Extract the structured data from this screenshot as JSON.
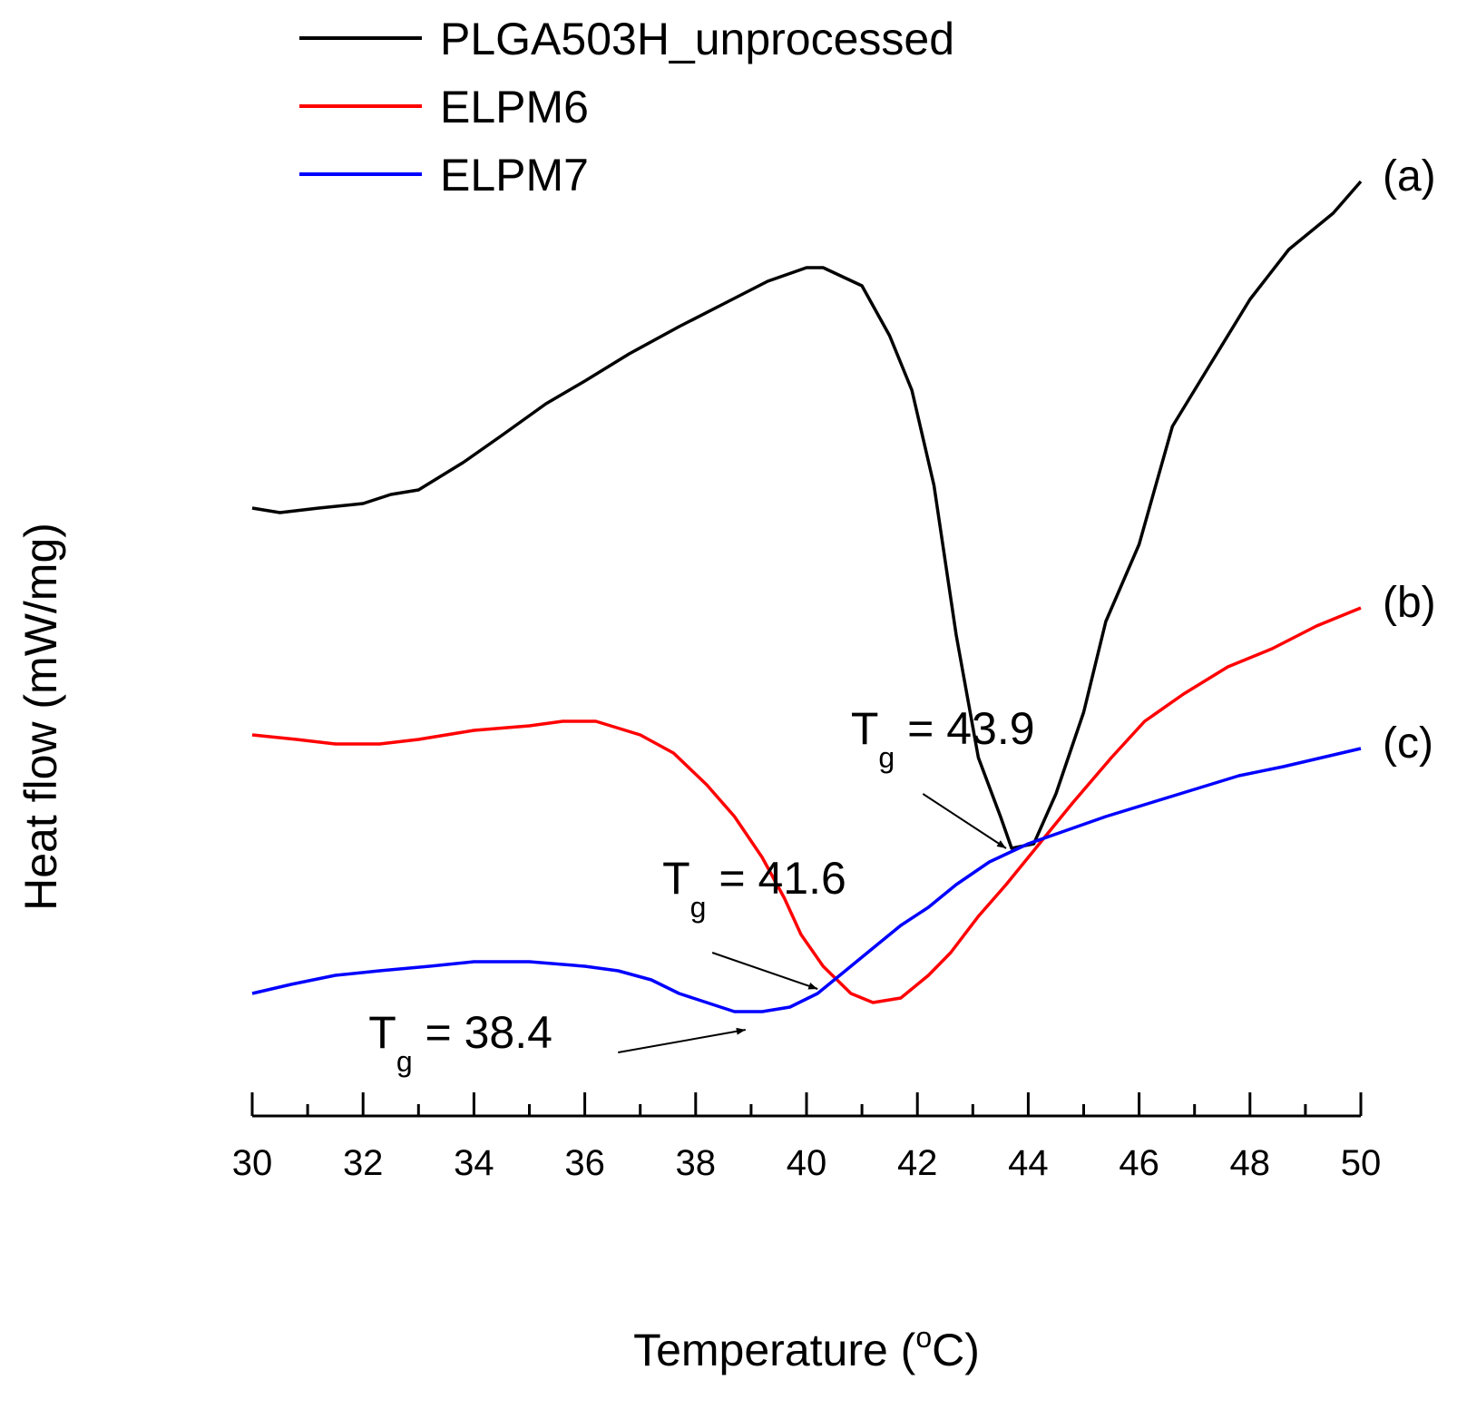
{
  "chart_data": {
    "type": "line",
    "xlabel": "Temperature (",
    "xlabel_sup": "o",
    "xlabel_end": "C)",
    "ylabel": "Heat flow (mW/mg)",
    "xlim": [
      30,
      50
    ],
    "x_ticks": [
      "30",
      "32",
      "34",
      "36",
      "38",
      "40",
      "42",
      "44",
      "46",
      "48",
      "50"
    ],
    "y_axis_scale": "arbitrary, no tick labels",
    "grid": false,
    "legend_position": "top-left",
    "series": [
      {
        "name": "PLGA503H_unprocessed",
        "label": "(a)",
        "color": "#000000",
        "points": [
          [
            30.0,
            0.5
          ],
          [
            30.5,
            0.49
          ],
          [
            31.2,
            0.5
          ],
          [
            32.0,
            0.51
          ],
          [
            32.5,
            0.53
          ],
          [
            33.0,
            0.54
          ],
          [
            33.8,
            0.6
          ],
          [
            34.5,
            0.66
          ],
          [
            35.3,
            0.73
          ],
          [
            36.0,
            0.78
          ],
          [
            36.8,
            0.84
          ],
          [
            37.7,
            0.9
          ],
          [
            38.5,
            0.95
          ],
          [
            39.3,
            1.0
          ],
          [
            40.0,
            1.03
          ],
          [
            40.3,
            1.03
          ],
          [
            41.0,
            0.99
          ],
          [
            41.5,
            0.88
          ],
          [
            41.9,
            0.76
          ],
          [
            42.3,
            0.55
          ],
          [
            42.7,
            0.22
          ],
          [
            43.1,
            -0.05
          ],
          [
            43.5,
            -0.18
          ],
          [
            43.7,
            -0.25
          ],
          [
            44.1,
            -0.24
          ],
          [
            44.5,
            -0.13
          ],
          [
            45.0,
            0.05
          ],
          [
            45.4,
            0.25
          ],
          [
            46.0,
            0.42
          ],
          [
            46.6,
            0.68
          ],
          [
            47.3,
            0.82
          ],
          [
            48.0,
            0.96
          ],
          [
            48.7,
            1.07
          ],
          [
            49.5,
            1.15
          ],
          [
            50.0,
            1.22
          ]
        ]
      },
      {
        "name": "ELPM6",
        "label": "(b)",
        "color": "#ff0000",
        "points": [
          [
            30.0,
            0.0
          ],
          [
            30.8,
            -0.01
          ],
          [
            31.5,
            -0.02
          ],
          [
            32.3,
            -0.02
          ],
          [
            33.0,
            -0.01
          ],
          [
            34.0,
            0.01
          ],
          [
            35.0,
            0.02
          ],
          [
            35.6,
            0.03
          ],
          [
            36.2,
            0.03
          ],
          [
            37.0,
            0.0
          ],
          [
            37.6,
            -0.04
          ],
          [
            38.2,
            -0.11
          ],
          [
            38.7,
            -0.18
          ],
          [
            39.2,
            -0.27
          ],
          [
            39.6,
            -0.36
          ],
          [
            39.9,
            -0.44
          ],
          [
            40.3,
            -0.51
          ],
          [
            40.8,
            -0.57
          ],
          [
            41.2,
            -0.59
          ],
          [
            41.7,
            -0.58
          ],
          [
            42.2,
            -0.53
          ],
          [
            42.6,
            -0.48
          ],
          [
            43.1,
            -0.4
          ],
          [
            43.6,
            -0.33
          ],
          [
            44.2,
            -0.24
          ],
          [
            44.8,
            -0.15
          ],
          [
            45.5,
            -0.05
          ],
          [
            46.1,
            0.03
          ],
          [
            46.8,
            0.09
          ],
          [
            47.6,
            0.15
          ],
          [
            48.4,
            0.19
          ],
          [
            49.2,
            0.24
          ],
          [
            50.0,
            0.28
          ]
        ]
      },
      {
        "name": "ELPM7",
        "label": "(c)",
        "color": "#0000ff",
        "points": [
          [
            30.0,
            -0.57
          ],
          [
            30.7,
            -0.55
          ],
          [
            31.5,
            -0.53
          ],
          [
            32.3,
            -0.52
          ],
          [
            33.2,
            -0.51
          ],
          [
            34.0,
            -0.5
          ],
          [
            35.0,
            -0.5
          ],
          [
            36.0,
            -0.51
          ],
          [
            36.6,
            -0.52
          ],
          [
            37.2,
            -0.54
          ],
          [
            37.7,
            -0.57
          ],
          [
            38.2,
            -0.59
          ],
          [
            38.7,
            -0.61
          ],
          [
            39.2,
            -0.61
          ],
          [
            39.7,
            -0.6
          ],
          [
            40.2,
            -0.57
          ],
          [
            40.7,
            -0.52
          ],
          [
            41.2,
            -0.47
          ],
          [
            41.7,
            -0.42
          ],
          [
            42.2,
            -0.38
          ],
          [
            42.7,
            -0.33
          ],
          [
            43.3,
            -0.28
          ],
          [
            44.0,
            -0.24
          ],
          [
            44.7,
            -0.21
          ],
          [
            45.4,
            -0.18
          ],
          [
            46.2,
            -0.15
          ],
          [
            47.0,
            -0.12
          ],
          [
            47.8,
            -0.09
          ],
          [
            48.6,
            -0.07
          ],
          [
            49.3,
            -0.05
          ],
          [
            50.0,
            -0.03
          ]
        ]
      }
    ],
    "annotations": [
      {
        "text_main": "T",
        "text_sub": "g",
        "text_value": " = 43.9",
        "text_x": 40.8,
        "text_y": -0.02,
        "arrow_from": [
          42.1,
          -0.13
        ],
        "arrow_to": [
          43.6,
          -0.25
        ]
      },
      {
        "text_main": "T",
        "text_sub": "g",
        "text_value": " = 41.6",
        "text_x": 37.4,
        "text_y": -0.35,
        "arrow_from": [
          38.3,
          -0.48
        ],
        "arrow_to": [
          40.2,
          -0.56
        ]
      },
      {
        "text_main": "T",
        "text_sub": "g",
        "text_value": " = 38.4",
        "text_x": 32.1,
        "text_y": -0.69,
        "arrow_from": [
          36.6,
          -0.7
        ],
        "arrow_to": [
          38.9,
          -0.65
        ]
      }
    ]
  }
}
